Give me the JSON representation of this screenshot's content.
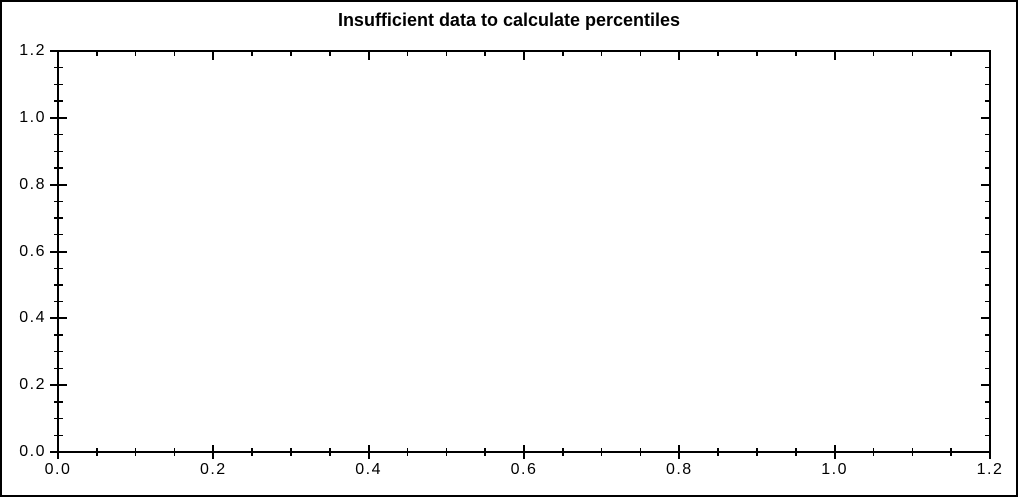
{
  "frame": {
    "background": "#ffffff",
    "border_color": "#000000"
  },
  "chart_data": {
    "type": "line",
    "title": "Insufficient data to calculate percentiles",
    "series": [],
    "xlabel": "",
    "ylabel": "",
    "xlim": [
      0.0,
      1.2
    ],
    "ylim": [
      0.0,
      1.2
    ],
    "x_ticks": [
      {
        "v": 0.0,
        "label": "0.0"
      },
      {
        "v": 0.2,
        "label": "0.2"
      },
      {
        "v": 0.4,
        "label": "0.4"
      },
      {
        "v": 0.6,
        "label": "0.6"
      },
      {
        "v": 0.8,
        "label": "0.8"
      },
      {
        "v": 1.0,
        "label": "1.0"
      },
      {
        "v": 1.2,
        "label": "1.2"
      }
    ],
    "y_ticks": [
      {
        "v": 0.0,
        "label": "0.0"
      },
      {
        "v": 0.2,
        "label": "0.2"
      },
      {
        "v": 0.4,
        "label": "0.4"
      },
      {
        "v": 0.6,
        "label": "0.6"
      },
      {
        "v": 0.8,
        "label": "0.8"
      },
      {
        "v": 1.0,
        "label": "1.0"
      },
      {
        "v": 1.2,
        "label": "1.2"
      }
    ],
    "minor_tick_step": 0.05,
    "minor_ticks_per_major": 3,
    "grid": false,
    "legend": null,
    "axis_color": "#000000",
    "text_color": "#000000",
    "plot_background": "#ffffff"
  }
}
